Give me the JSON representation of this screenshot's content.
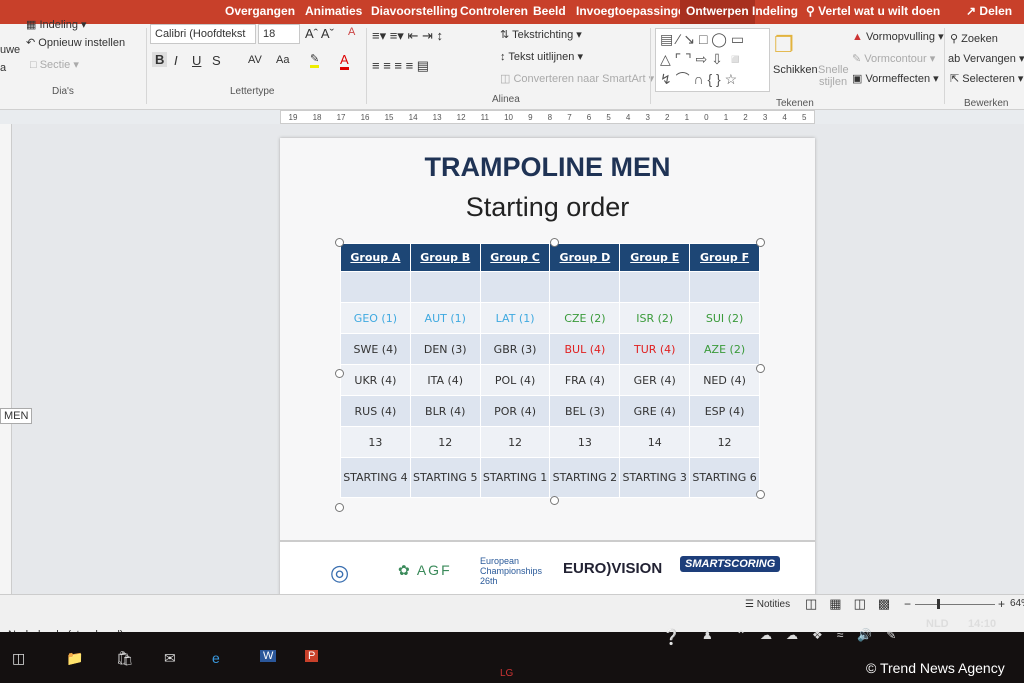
{
  "tabs": [
    "Overgangen",
    "Animaties",
    "Diavoorstelling",
    "Controleren",
    "Beeld",
    "Invoegtoepassingen",
    "Ontwerpen",
    "Indeling"
  ],
  "tell_me": "Vertel wat u wilt doen",
  "share": "Delen",
  "ribbon": {
    "slides": {
      "layout": "Indeling",
      "reset": "Opnieuw instellen",
      "section": "Sectie",
      "new_partial": "uwe",
      "new_partial2": "a",
      "label": "Dia's"
    },
    "font": {
      "name": "Calibri (Hoofdtekst",
      "size": "18",
      "bold": "B",
      "italic": "I",
      "underline": "U",
      "strike": "S",
      "spacing": "AV",
      "case": "Aa",
      "label": "Lettertype"
    },
    "paragraph": {
      "direction": "Tekstrichting",
      "align": "Tekst uitlijnen",
      "smartart": "Converteren naar SmartArt",
      "label": "Alinea"
    },
    "drawing": {
      "arrange": "Schikken",
      "quick_styles": "Snelle stijlen",
      "fill": "Vormopvulling",
      "outline": "Vormcontour",
      "effects": "Vormeffecten",
      "label": "Tekenen"
    },
    "editing": {
      "find": "Zoeken",
      "replace": "Vervangen",
      "select": "Selecteren",
      "label": "Bewerken"
    }
  },
  "ruler": [
    "19",
    "18",
    "17",
    "16",
    "15",
    "14",
    "13",
    "12",
    "11",
    "10",
    "9",
    "8",
    "7",
    "6",
    "5",
    "4",
    "3",
    "2",
    "1",
    "0",
    "1",
    "2",
    "3",
    "4",
    "5"
  ],
  "slide": {
    "title": "TRAMPOLINE MEN",
    "subtitle": "Starting order",
    "headers": [
      "Group A",
      "Group B",
      "Group C",
      "Group D",
      "Group E",
      "Group F"
    ],
    "rows": [
      [
        {
          "t": ""
        },
        {
          "t": ""
        },
        {
          "t": ""
        },
        {
          "t": ""
        },
        {
          "t": ""
        },
        {
          "t": ""
        }
      ],
      [
        {
          "t": "GEO (1)",
          "c": "#3fa9e0"
        },
        {
          "t": "AUT (1)",
          "c": "#3fa9e0"
        },
        {
          "t": "LAT (1)",
          "c": "#3fa9e0"
        },
        {
          "t": "CZE (2)",
          "c": "#3a9a3a"
        },
        {
          "t": "ISR (2)",
          "c": "#3a9a3a"
        },
        {
          "t": "SUI (2)",
          "c": "#3a9a3a"
        }
      ],
      [
        {
          "t": "SWE (4)"
        },
        {
          "t": "DEN (3)"
        },
        {
          "t": "GBR (3)"
        },
        {
          "t": "BUL (4)",
          "c": "#e02020"
        },
        {
          "t": "TUR (4)",
          "c": "#e02020"
        },
        {
          "t": "AZE (2)",
          "c": "#3a9a3a"
        }
      ],
      [
        {
          "t": "UKR (4)"
        },
        {
          "t": "ITA (4)"
        },
        {
          "t": "POL (4)"
        },
        {
          "t": "FRA (4)"
        },
        {
          "t": "GER (4)"
        },
        {
          "t": "NED (4)"
        }
      ],
      [
        {
          "t": "RUS (4)"
        },
        {
          "t": "BLR (4)"
        },
        {
          "t": "POR (4)"
        },
        {
          "t": "BEL (3)"
        },
        {
          "t": "GRE (4)"
        },
        {
          "t": "ESP (4)"
        }
      ],
      [
        {
          "t": "13"
        },
        {
          "t": "12"
        },
        {
          "t": "12"
        },
        {
          "t": "13"
        },
        {
          "t": "14"
        },
        {
          "t": "12"
        }
      ],
      [
        {
          "t": "STARTING 4"
        },
        {
          "t": "STARTING 5"
        },
        {
          "t": "STARTING 1"
        },
        {
          "t": "STARTING 2"
        },
        {
          "t": "STARTING 3"
        },
        {
          "t": "STARTING 6"
        }
      ]
    ],
    "logos": [
      "UEG",
      "AGF",
      "European Championships 26th",
      "EURO VISION",
      "SMARTSCORING"
    ]
  },
  "left_thumb_text": "MEN",
  "status": {
    "language": "Nederlands (standaard)",
    "notes": "Notities",
    "zoom": "64"
  },
  "taskbar": {
    "lang": "NLD",
    "time": "14:10",
    "monitor": "LG"
  },
  "watermark": "© Trend News Agency"
}
